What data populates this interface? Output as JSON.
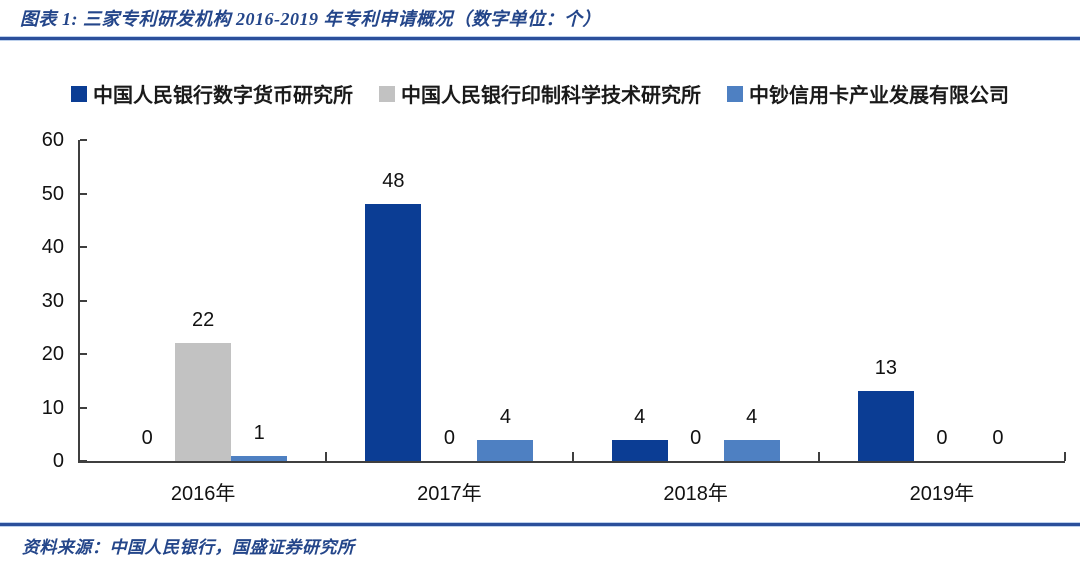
{
  "figure": {
    "title": "图表 1: 三家专利研发机构 2016-2019 年专利申请概况（数字单位：个）",
    "source": "资料来源：中国人民银行，国盛证券研究所"
  },
  "colors": {
    "title_text": "#24468a",
    "divider": "#2b4f9b",
    "axis": "#3f3f3f",
    "label_text": "#111111"
  },
  "chart_data": {
    "type": "bar",
    "title": "三家专利研发机构 2016-2019 年专利申请概况",
    "unit_note": "数字单位：个",
    "categories": [
      "2016年",
      "2017年",
      "2018年",
      "2019年"
    ],
    "series": [
      {
        "name": "中国人民银行数字货币研究所",
        "color": "#0b3d94",
        "values": [
          0,
          48,
          4,
          13
        ]
      },
      {
        "name": "中国人民银行印制科学技术研究所",
        "color": "#c2c2c2",
        "values": [
          22,
          0,
          0,
          0
        ]
      },
      {
        "name": "中钞信用卡产业发展有限公司",
        "color": "#4e80c2",
        "values": [
          1,
          4,
          4,
          0
        ]
      }
    ],
    "ylim": [
      0,
      60
    ],
    "yticks": [
      0,
      10,
      20,
      30,
      40,
      50,
      60
    ],
    "legend_position": "top",
    "grid": false,
    "data_labels": true
  }
}
